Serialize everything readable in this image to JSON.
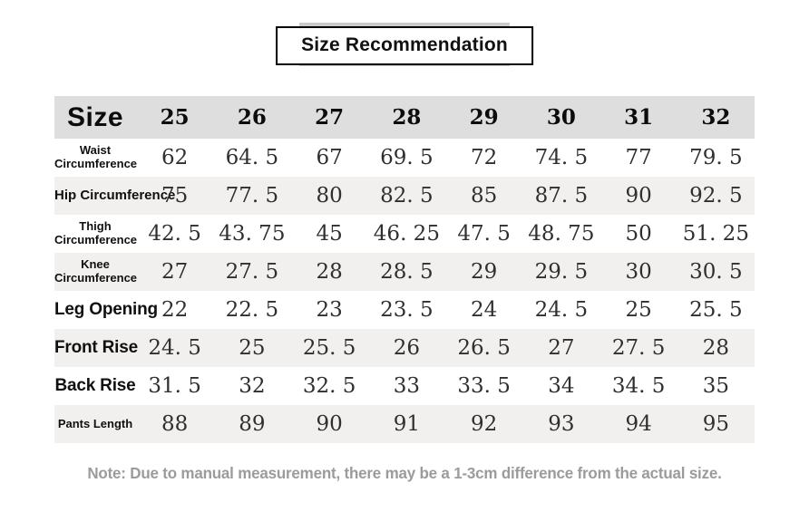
{
  "title": "Size Recommendation",
  "note": "Note: Due to manual measurement, there may be a 1-3cm difference from the actual size.",
  "colors": {
    "header_bg": "#dedede",
    "stripe_bg": "#f1f0ee",
    "title_border": "#000000",
    "note_color": "#9b9b9b",
    "number_color": "#2f2f2f",
    "label_color": "#101010"
  },
  "chart_data": {
    "type": "table",
    "title": "Size Recommendation",
    "corner_label": "Size",
    "columns": [
      "25",
      "26",
      "27",
      "28",
      "29",
      "30",
      "31",
      "32"
    ],
    "rows": [
      {
        "label": "Waist Circumference",
        "label_style": "small",
        "values": [
          "62",
          "64. 5",
          "67",
          "69. 5",
          "72",
          "74. 5",
          "77",
          "79. 5"
        ]
      },
      {
        "label": "Hip Circumference",
        "label_style": "medium",
        "values": [
          "75",
          "77. 5",
          "80",
          "82. 5",
          "85",
          "87. 5",
          "90",
          "92. 5"
        ]
      },
      {
        "label": "Thigh Circumference",
        "label_style": "small",
        "values": [
          "42. 5",
          "43. 75",
          "45",
          "46. 25",
          "47. 5",
          "48. 75",
          "50",
          "51. 25"
        ]
      },
      {
        "label": "Knee Circumference",
        "label_style": "small",
        "values": [
          "27",
          "27. 5",
          "28",
          "28. 5",
          "29",
          "29. 5",
          "30",
          "30. 5"
        ]
      },
      {
        "label": "Leg Opening",
        "label_style": "large",
        "values": [
          "22",
          "22. 5",
          "23",
          "23. 5",
          "24",
          "24. 5",
          "25",
          "25. 5"
        ]
      },
      {
        "label": "Front Rise",
        "label_style": "large",
        "values": [
          "24. 5",
          "25",
          "25. 5",
          "26",
          "26. 5",
          "27",
          "27. 5",
          "28"
        ]
      },
      {
        "label": "Back Rise",
        "label_style": "large",
        "values": [
          "31. 5",
          "32",
          "32. 5",
          "33",
          "33. 5",
          "34",
          "34. 5",
          "35"
        ]
      },
      {
        "label": "Pants Length",
        "label_style": "small",
        "values": [
          "88",
          "89",
          "90",
          "91",
          "92",
          "93",
          "94",
          "95"
        ]
      }
    ]
  }
}
